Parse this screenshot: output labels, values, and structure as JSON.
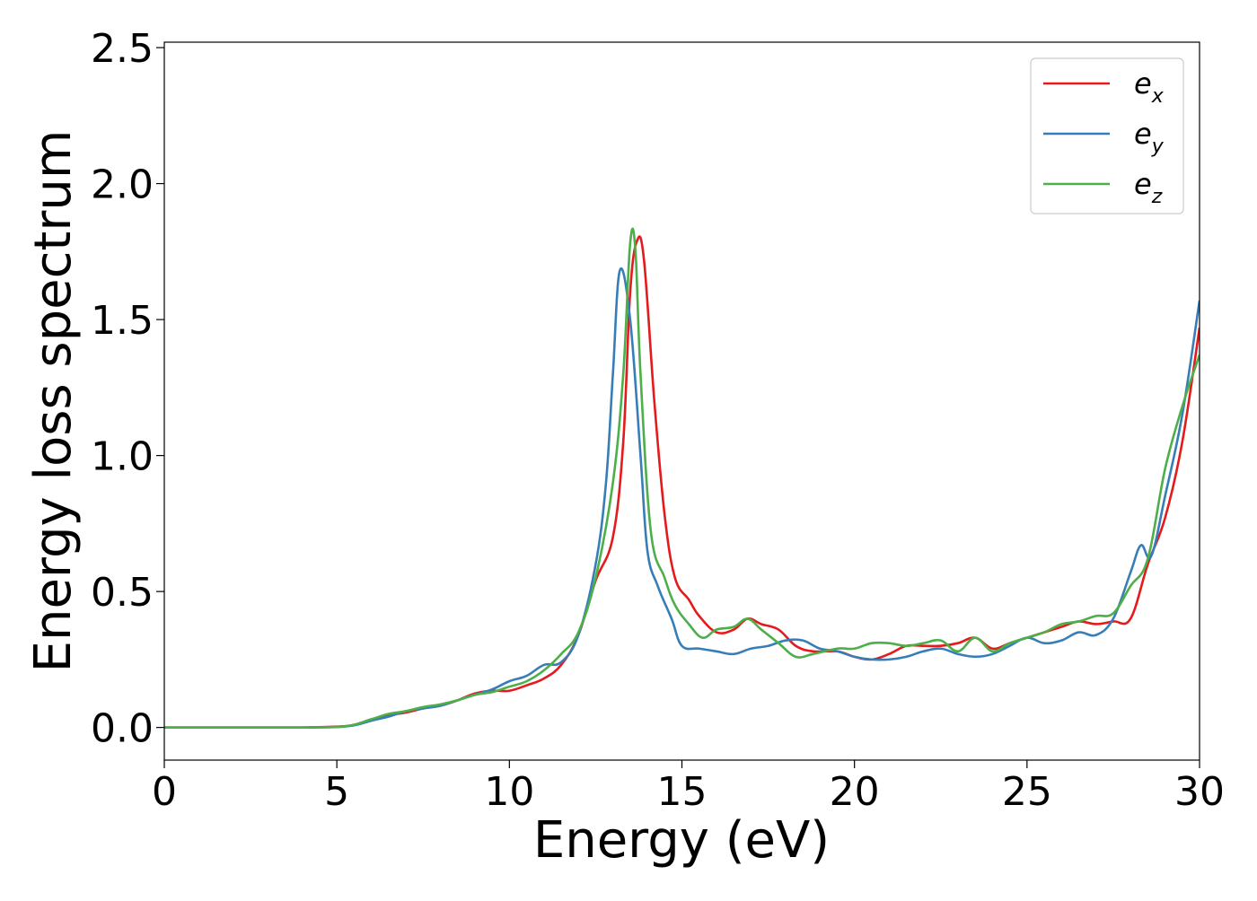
{
  "chart_data": {
    "type": "line",
    "xlabel": "Energy (eV)",
    "ylabel": "Energy loss spectrum",
    "xlim": [
      0,
      30
    ],
    "ylim": [
      -0.12,
      2.52
    ],
    "xticks": [
      0,
      5,
      10,
      15,
      20,
      25,
      30
    ],
    "xtick_labels": [
      "0",
      "5",
      "10",
      "15",
      "20",
      "25",
      "30"
    ],
    "yticks": [
      0.0,
      0.5,
      1.0,
      1.5,
      2.0,
      2.5
    ],
    "ytick_labels": [
      "0.0",
      "0.5",
      "1.0",
      "1.5",
      "2.0",
      "2.5"
    ],
    "grid": false,
    "legend_position": "top-right",
    "series": [
      {
        "name": "e",
        "subscript": "x",
        "color": "#e41a1c",
        "x": [
          0,
          1,
          2,
          3,
          4,
          5,
          5.5,
          6,
          6.5,
          7,
          7.5,
          8,
          8.5,
          9,
          9.5,
          10,
          10.5,
          11,
          11.5,
          12,
          12.5,
          13,
          13.3,
          13.5,
          13.7,
          13.9,
          14.2,
          14.5,
          14.8,
          15.2,
          15.5,
          16,
          16.5,
          16.9,
          17.3,
          17.8,
          18.3,
          18.8,
          19.5,
          20,
          20.5,
          21,
          21.5,
          22,
          22.5,
          23,
          23.5,
          24,
          24.5,
          25,
          25.5,
          26,
          26.5,
          27,
          27.5,
          28,
          28.5,
          29,
          29.5,
          30
        ],
        "y": [
          0,
          0,
          0,
          0,
          0,
          0.003,
          0.01,
          0.03,
          0.045,
          0.055,
          0.07,
          0.08,
          0.1,
          0.125,
          0.135,
          0.135,
          0.155,
          0.18,
          0.23,
          0.34,
          0.54,
          0.7,
          1.05,
          1.6,
          1.79,
          1.72,
          1.2,
          0.78,
          0.55,
          0.47,
          0.41,
          0.35,
          0.36,
          0.4,
          0.38,
          0.36,
          0.3,
          0.28,
          0.28,
          0.26,
          0.25,
          0.27,
          0.3,
          0.3,
          0.3,
          0.31,
          0.33,
          0.29,
          0.31,
          0.33,
          0.35,
          0.37,
          0.39,
          0.38,
          0.39,
          0.4,
          0.6,
          0.77,
          1.05,
          1.47
        ]
      },
      {
        "name": "e",
        "subscript": "y",
        "color": "#377eb8",
        "x": [
          0,
          1,
          2,
          3,
          4,
          5,
          5.5,
          6,
          6.5,
          7,
          7.5,
          8,
          8.5,
          9,
          9.5,
          10,
          10.5,
          11,
          11.5,
          12,
          12.5,
          12.8,
          13.0,
          13.2,
          13.5,
          13.8,
          14.0,
          14.3,
          14.7,
          15.0,
          15.5,
          16,
          16.5,
          17,
          17.5,
          18,
          18.5,
          19,
          19.5,
          20,
          20.5,
          21,
          21.5,
          22,
          22.5,
          23,
          23.5,
          24,
          24.5,
          25,
          25.5,
          26,
          26.5,
          27,
          27.5,
          28,
          28.3,
          28.6,
          29,
          29.5,
          30
        ],
        "y": [
          0,
          0,
          0,
          0,
          0,
          0.002,
          0.008,
          0.025,
          0.04,
          0.06,
          0.07,
          0.08,
          0.1,
          0.12,
          0.14,
          0.17,
          0.19,
          0.23,
          0.24,
          0.34,
          0.6,
          0.9,
          1.3,
          1.68,
          1.5,
          1.0,
          0.65,
          0.52,
          0.4,
          0.3,
          0.29,
          0.28,
          0.27,
          0.29,
          0.3,
          0.32,
          0.32,
          0.29,
          0.28,
          0.26,
          0.25,
          0.25,
          0.26,
          0.28,
          0.29,
          0.27,
          0.26,
          0.27,
          0.3,
          0.33,
          0.31,
          0.32,
          0.35,
          0.34,
          0.4,
          0.57,
          0.67,
          0.63,
          0.85,
          1.15,
          1.57
        ]
      },
      {
        "name": "e",
        "subscript": "z",
        "color": "#4daf4a",
        "x": [
          0,
          1,
          2,
          3,
          4,
          5,
          5.5,
          6,
          6.5,
          7,
          7.5,
          8,
          8.5,
          9,
          9.5,
          10,
          10.5,
          11,
          11.5,
          12,
          12.5,
          13,
          13.3,
          13.5,
          13.65,
          13.8,
          14.1,
          14.5,
          14.8,
          15.2,
          15.6,
          16,
          16.5,
          16.9,
          17.3,
          17.8,
          18.3,
          18.8,
          19.5,
          20,
          20.5,
          21,
          21.5,
          22,
          22.5,
          23,
          23.5,
          24,
          24.5,
          25,
          25.5,
          26,
          26.5,
          27,
          27.5,
          28,
          28.5,
          29,
          29.5,
          30
        ],
        "y": [
          0,
          0,
          0,
          0,
          0,
          0.002,
          0.01,
          0.03,
          0.05,
          0.06,
          0.075,
          0.085,
          0.1,
          0.12,
          0.13,
          0.15,
          0.17,
          0.21,
          0.27,
          0.35,
          0.55,
          0.9,
          1.3,
          1.78,
          1.76,
          1.3,
          0.72,
          0.55,
          0.45,
          0.38,
          0.33,
          0.36,
          0.37,
          0.4,
          0.36,
          0.31,
          0.26,
          0.27,
          0.29,
          0.29,
          0.31,
          0.31,
          0.3,
          0.31,
          0.32,
          0.28,
          0.33,
          0.28,
          0.31,
          0.33,
          0.35,
          0.38,
          0.39,
          0.41,
          0.42,
          0.52,
          0.62,
          0.95,
          1.18,
          1.37
        ]
      }
    ]
  }
}
